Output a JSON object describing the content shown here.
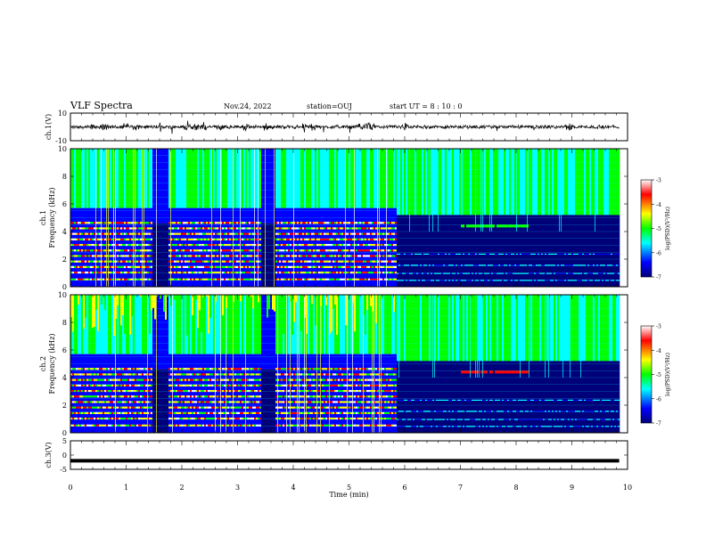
{
  "header": {
    "title": "VLF Spectra",
    "date": "Nov.24, 2022",
    "station": "station=OUJ",
    "start": "start  UT =  8 : 10 : 0"
  },
  "chart_data": [
    {
      "type": "line",
      "ylabel": "ch.1(V)",
      "ylim": [
        -10,
        10
      ],
      "yticks": [
        "10",
        "-10"
      ],
      "xlim": [
        0,
        10
      ],
      "description_values": "waveform amplitude, baseline near 0 V with bursts up to about ±5 V",
      "data_end_min": 9.85
    },
    {
      "type": "heatmap",
      "ylabel": "ch.1\nFrequency (kHz)",
      "ylim": [
        0,
        10
      ],
      "yticks": [
        "0",
        "2",
        "4",
        "6",
        "8",
        "10"
      ],
      "xlim": [
        0,
        10
      ],
      "colorbar": {
        "label": "log(PSD)(V²/Hz)",
        "ticks": [
          "-3",
          "-4",
          "-5",
          "-6",
          "-7"
        ],
        "range": [
          -7,
          -3
        ]
      },
      "quiet_periods_min": [
        [
          1.45,
          1.75
        ],
        [
          3.4,
          3.65
        ],
        [
          5.85,
          9.85
        ]
      ]
    },
    {
      "type": "heatmap",
      "ylabel": "ch.2\nFrequency (kHz)",
      "ylim": [
        0,
        10
      ],
      "yticks": [
        "0",
        "2",
        "4",
        "6",
        "8",
        "10"
      ],
      "xlim": [
        0,
        10
      ],
      "colorbar": {
        "label": "log(PSD)(V²/Hz)",
        "ticks": [
          "-3",
          "-4",
          "-5",
          "-6",
          "-7"
        ],
        "range": [
          -7,
          -3
        ]
      },
      "quiet_periods_min": [
        [
          1.45,
          1.75
        ],
        [
          3.4,
          3.65
        ],
        [
          5.85,
          9.85
        ]
      ]
    },
    {
      "type": "line",
      "ylabel": "ch.3(V)",
      "ylim": [
        -5,
        5
      ],
      "yticks": [
        "5",
        "0",
        "-5"
      ],
      "xlim": [
        0,
        10
      ],
      "series": [
        {
          "values": [
            -2,
            -2
          ]
        }
      ],
      "x": [
        0,
        9.85
      ]
    }
  ],
  "xaxis": {
    "label": "Time (min)",
    "ticks": [
      "0",
      "1",
      "2",
      "3",
      "4",
      "5",
      "6",
      "7",
      "8",
      "9",
      "10"
    ]
  },
  "colors": {
    "colormap": [
      "#00007a",
      "#0000ff",
      "#00ffff",
      "#00ff00",
      "#ffff00",
      "#ff0000",
      "#ffffff"
    ],
    "trace": "#000000"
  }
}
